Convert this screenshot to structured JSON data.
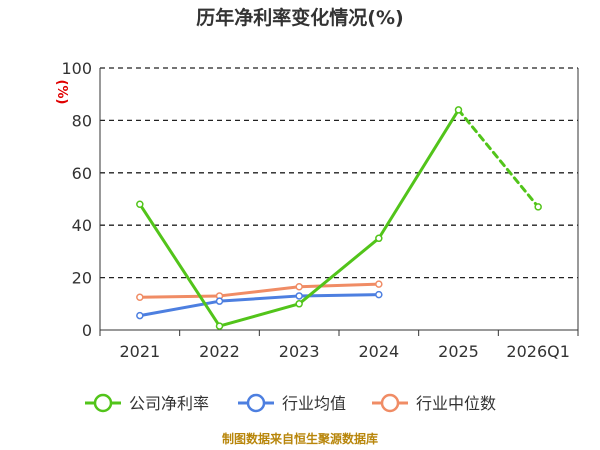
{
  "chart_data": {
    "type": "line",
    "title": "历年净利率变化情况(%)",
    "y_unit": "(%)",
    "categories": [
      "2021",
      "2022",
      "2023",
      "2024",
      "2025",
      "2026Q1"
    ],
    "ylim": [
      0,
      100
    ],
    "yticks": [
      0,
      20,
      40,
      60,
      80,
      100
    ],
    "grid": "horizontal dashed",
    "legend_position": "bottom",
    "series": [
      {
        "name": "公司净利率",
        "color": "#52c41a",
        "values": [
          48,
          1.5,
          10,
          35,
          84,
          47
        ],
        "dashed_last_segment": true
      },
      {
        "name": "行业均值",
        "color": "#4d7fe0",
        "values": [
          5.5,
          11,
          13,
          13.5,
          null,
          null
        ]
      },
      {
        "name": "行业中位数",
        "color": "#f08c65",
        "values": [
          12.5,
          13,
          16.5,
          17.5,
          null,
          null
        ]
      }
    ],
    "source": "制图数据来自恒生聚源数据库"
  }
}
